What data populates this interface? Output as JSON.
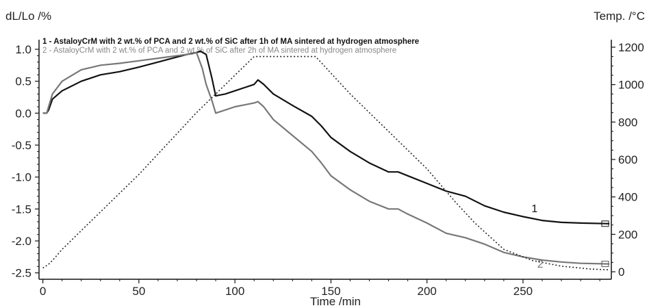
{
  "chart_data": {
    "type": "line",
    "xlabel": "Time /min",
    "ylabel_left": "dL/Lo /%",
    "ylabel_right": "Temp. /°C",
    "xlim": [
      -2,
      296
    ],
    "ylim_left": [
      -2.6,
      1.15
    ],
    "ylim_right": [
      -40,
      1240
    ],
    "x_ticks": [
      0,
      50,
      100,
      150,
      200,
      250
    ],
    "y_left_ticks": [
      1.0,
      0.5,
      0.0,
      -0.5,
      -1.0,
      -1.5,
      -2.0,
      -2.5
    ],
    "y_left_tick_labels": [
      "1.0",
      "0.5",
      "0.0",
      "-0.5",
      "-1.0",
      "-1.5",
      "-2.0",
      "-2.5"
    ],
    "y_right_ticks": [
      0,
      200,
      400,
      600,
      800,
      1000,
      1200
    ],
    "legend": [
      "1 - AstaloyCrM with 2 wt.% of PCA and 2 wt.% of SiC after 1h of MA sintered at hydrogen atmosphere",
      "2 - AstaloyCrM with 2 wt.% of PCA and 2 wt.% of SiC after 2h of MA sintered at hydrogen atmosphere"
    ],
    "series": [
      {
        "name": "1",
        "axis": "left",
        "color": "#111111",
        "x": [
          0,
          2,
          3,
          5,
          10,
          20,
          30,
          40,
          50,
          60,
          70,
          75,
          80,
          82,
          85,
          88,
          90,
          95,
          100,
          105,
          110,
          112,
          115,
          120,
          130,
          140,
          145,
          150,
          160,
          170,
          180,
          185,
          190,
          200,
          210,
          220,
          230,
          240,
          250,
          260,
          270,
          280,
          295
        ],
        "y": [
          0.0,
          0.0,
          0.05,
          0.22,
          0.35,
          0.5,
          0.6,
          0.65,
          0.72,
          0.8,
          0.88,
          0.92,
          0.95,
          0.97,
          0.92,
          0.55,
          0.27,
          0.3,
          0.35,
          0.4,
          0.45,
          0.52,
          0.45,
          0.3,
          0.12,
          -0.05,
          -0.2,
          -0.38,
          -0.6,
          -0.78,
          -0.92,
          -0.92,
          -0.98,
          -1.1,
          -1.22,
          -1.3,
          -1.45,
          -1.55,
          -1.62,
          -1.68,
          -1.71,
          -1.72,
          -1.73
        ]
      },
      {
        "name": "2",
        "axis": "left",
        "color": "#777777",
        "x": [
          0,
          2,
          3,
          5,
          10,
          20,
          30,
          40,
          50,
          60,
          70,
          78,
          80,
          83,
          85,
          88,
          90,
          95,
          100,
          105,
          110,
          112,
          115,
          120,
          130,
          140,
          145,
          150,
          160,
          170,
          180,
          185,
          190,
          200,
          210,
          220,
          230,
          240,
          250,
          260,
          270,
          280,
          295
        ],
        "y": [
          0.0,
          0.0,
          0.1,
          0.3,
          0.5,
          0.68,
          0.75,
          0.78,
          0.82,
          0.86,
          0.9,
          0.93,
          0.95,
          0.7,
          0.45,
          0.2,
          0.0,
          0.05,
          0.1,
          0.13,
          0.16,
          0.18,
          0.1,
          -0.1,
          -0.35,
          -0.6,
          -0.78,
          -0.98,
          -1.2,
          -1.38,
          -1.5,
          -1.5,
          -1.58,
          -1.72,
          -1.88,
          -1.95,
          -2.05,
          -2.18,
          -2.25,
          -2.3,
          -2.33,
          -2.35,
          -2.36
        ]
      },
      {
        "name": "Temp.",
        "axis": "right",
        "color": "#222222",
        "dash": "2,3",
        "x": [
          0,
          3,
          5,
          10,
          20,
          30,
          40,
          50,
          60,
          70,
          80,
          90,
          100,
          110,
          112,
          130,
          142,
          160,
          180,
          200,
          215,
          225,
          240,
          255,
          270,
          285,
          295
        ],
        "y": [
          20,
          40,
          60,
          120,
          220,
          320,
          420,
          520,
          630,
          740,
          850,
          950,
          1050,
          1150,
          1150,
          1150,
          1150,
          950,
          750,
          550,
          370,
          260,
          120,
          60,
          30,
          15,
          10
        ]
      }
    ],
    "annotations": [
      {
        "text": "1",
        "x": 256,
        "y": -1.55,
        "color": "#111111"
      },
      {
        "text": "2",
        "x": 259,
        "y": -2.42,
        "color": "#777777"
      }
    ]
  }
}
